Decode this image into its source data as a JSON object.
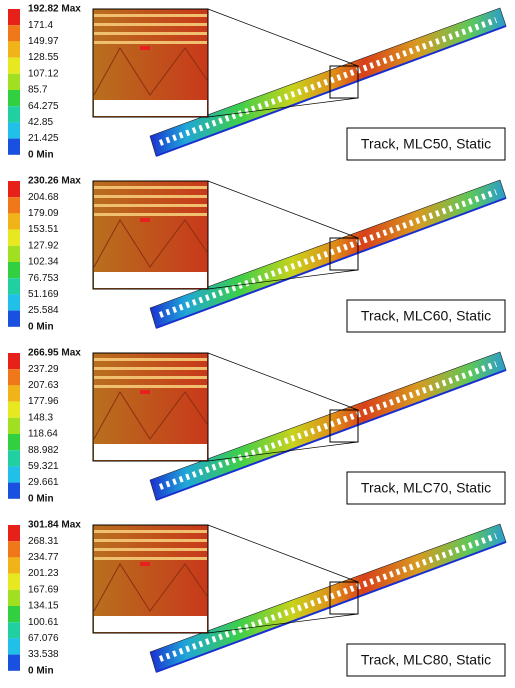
{
  "panels": [
    {
      "legend": [
        "192.82 Max",
        "171.4",
        "149.97",
        "128.55",
        "107.12",
        "85.7",
        "64.275",
        "42.85",
        "21.425",
        "0 Min"
      ],
      "caption": "Track, MLC50, Static"
    },
    {
      "legend": [
        "230.26 Max",
        "204.68",
        "179.09",
        "153.51",
        "127.92",
        "102.34",
        "76.753",
        "51.169",
        "25.584",
        "0 Min"
      ],
      "caption": "Track, MLC60, Static"
    },
    {
      "legend": [
        "266.95 Max",
        "237.29",
        "207.63",
        "177.96",
        "148.3",
        "118.64",
        "88.982",
        "59.321",
        "29.661",
        "0 Min"
      ],
      "caption": "Track, MLC70, Static"
    },
    {
      "legend": [
        "301.84 Max",
        "268.31",
        "234.77",
        "201.23",
        "167.69",
        "134.15",
        "100.61",
        "67.076",
        "33.538",
        "0 Min"
      ],
      "caption": "Track, MLC80, Static"
    }
  ]
}
